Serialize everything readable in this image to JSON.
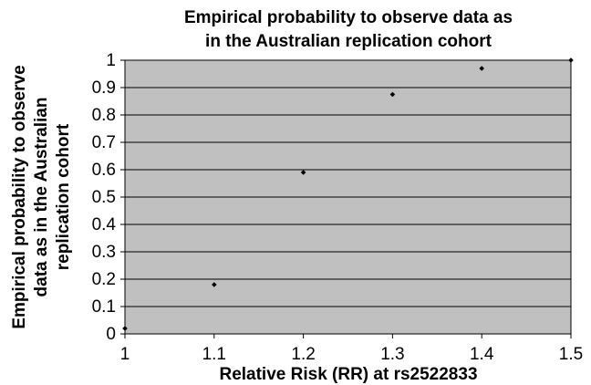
{
  "chart_data": {
    "type": "scatter",
    "title_lines": [
      "Empirical probability to observe data as",
      "in the Australian replication cohort"
    ],
    "xlabel": "Relative Risk (RR) at rs2522833",
    "ylabel_lines": [
      "Empirical probability to observe",
      "data as in the Australian",
      "replication cohort"
    ],
    "xlim": [
      1,
      1.5
    ],
    "ylim": [
      0,
      1
    ],
    "x_ticks": [
      "1",
      "1.1",
      "1.2",
      "1.3",
      "1.4",
      "1.5"
    ],
    "y_ticks": [
      "0",
      "0.1",
      "0.2",
      "0.3",
      "0.4",
      "0.5",
      "0.6",
      "0.7",
      "0.8",
      "0.9",
      "1"
    ],
    "grid": true,
    "legend": "none",
    "colors": {
      "plot_background": "#c0c0c0",
      "gridline": "#000000",
      "marker": "#000000"
    },
    "series": [
      {
        "x": [
          1.0,
          1.1,
          1.2,
          1.3,
          1.4,
          1.5
        ],
        "y": [
          0.02,
          0.18,
          0.59,
          0.875,
          0.97,
          1.0
        ]
      }
    ]
  }
}
